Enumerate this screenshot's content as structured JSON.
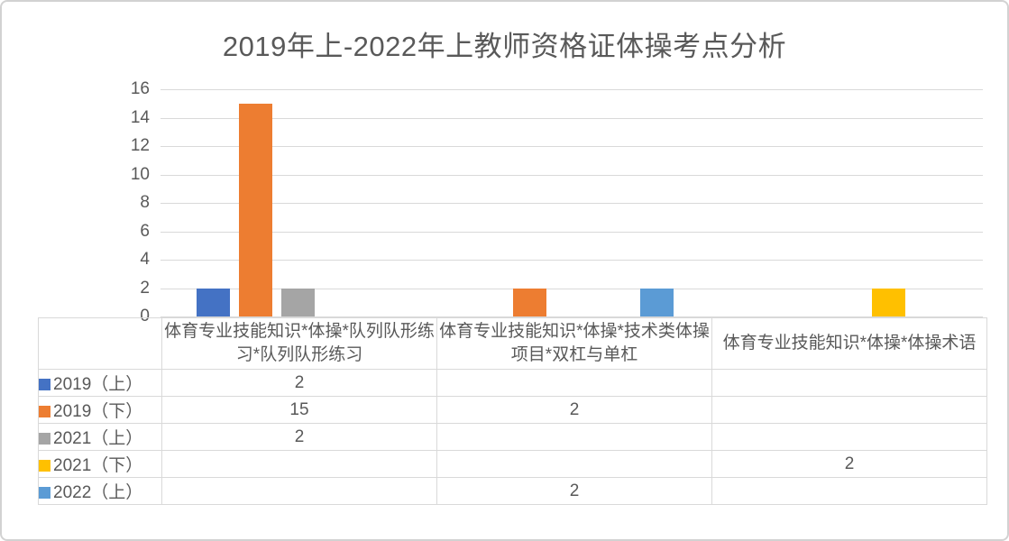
{
  "chart_data": {
    "type": "bar",
    "title": "2019年上-2022年上教师资格证体操考点分析",
    "categories": [
      "体育专业技能知识*体操*队列队形练习*队列队形练习",
      "体育专业技能知识*体操*技术类体操项目*双杠与单杠",
      "体育专业技能知识*体操*体操术语"
    ],
    "series": [
      {
        "name": "2019（上）",
        "color": "#4472C4",
        "values": [
          2,
          null,
          null
        ]
      },
      {
        "name": "2019（下）",
        "color": "#ED7D31",
        "values": [
          15,
          2,
          null
        ]
      },
      {
        "name": "2021（上）",
        "color": "#A5A5A5",
        "values": [
          2,
          null,
          null
        ]
      },
      {
        "name": "2021（下）",
        "color": "#FFC000",
        "values": [
          null,
          null,
          2
        ]
      },
      {
        "name": "2022（上）",
        "color": "#5B9BD5",
        "values": [
          null,
          2,
          null
        ]
      }
    ],
    "ylim": [
      0,
      16
    ],
    "ytick_step": 2,
    "ytick_labels": [
      "0",
      "2",
      "4",
      "6",
      "8",
      "10",
      "12",
      "14",
      "16"
    ],
    "grid": true,
    "legend_position": "data-table-left",
    "xlabel": "",
    "ylabel": ""
  },
  "palette": {
    "text_color": "#595959",
    "gridline_color": "#D9D9D9",
    "table_border_color": "#D9D9D9",
    "frame_border_color": "#D2D2D2",
    "background": "#FFFFFF"
  }
}
